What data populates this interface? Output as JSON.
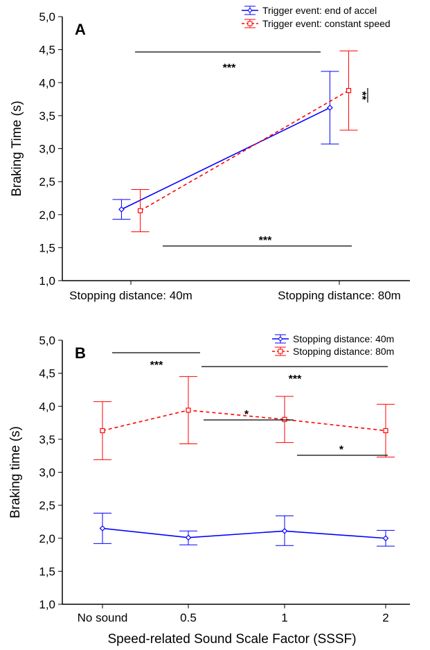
{
  "chart_data": [
    {
      "type": "line",
      "panel_label": "A",
      "ylabel": "Braking Time (s)",
      "xlabel": "",
      "categories": [
        "Stopping distance: 40m",
        "Stopping distance: 80m"
      ],
      "ylim": [
        1.0,
        5.0
      ],
      "yticks": [
        "1,0",
        "1,5",
        "2,0",
        "2,5",
        "3,0",
        "3,5",
        "4,0",
        "4,5",
        "5,0"
      ],
      "series": [
        {
          "name": "Trigger event: end of accel",
          "color": "#0000ff",
          "style": "solid",
          "marker": "diamond",
          "values": [
            2.08,
            3.62
          ],
          "err_low": [
            1.93,
            3.07
          ],
          "err_high": [
            2.23,
            4.17
          ],
          "offset": -0.1
        },
        {
          "name": "Trigger event: constant speed",
          "color": "#ff0000",
          "style": "dashed",
          "marker": "square",
          "values": [
            2.06,
            3.88
          ],
          "err_low": [
            1.74,
            3.28
          ],
          "err_high": [
            2.38,
            4.48
          ],
          "offset": 0.1
        }
      ],
      "significance": [
        {
          "label": "***",
          "from": 0,
          "to": 1,
          "y": 4.75
        },
        {
          "label": "***",
          "from": 0,
          "to": 1,
          "y": 1.5
        },
        {
          "label": "**",
          "vertical": true
        }
      ]
    },
    {
      "type": "line",
      "panel_label": "B",
      "ylabel": "Braking time (s)",
      "xlabel": "Speed-related Sound Scale Factor (SSSF)",
      "categories": [
        "No sound",
        "0.5",
        "1",
        "2"
      ],
      "ylim": [
        1.0,
        5.0
      ],
      "yticks": [
        "1,0",
        "1,5",
        "2,0",
        "2,5",
        "3,0",
        "3,5",
        "4,0",
        "4,5",
        "5,0"
      ],
      "series": [
        {
          "name": "Stopping distance: 40m",
          "color": "#0000ff",
          "style": "solid",
          "marker": "diamond",
          "values": [
            2.15,
            2.01,
            2.11,
            2.0
          ],
          "err_low": [
            1.92,
            1.9,
            1.89,
            1.88
          ],
          "err_high": [
            2.38,
            2.11,
            2.34,
            2.12
          ]
        },
        {
          "name": "Stopping distance: 80m",
          "color": "#ff0000",
          "style": "dashed",
          "marker": "square",
          "values": [
            3.63,
            3.94,
            3.8,
            3.63
          ],
          "err_low": [
            3.19,
            3.43,
            3.45,
            3.23
          ],
          "err_high": [
            4.07,
            4.45,
            4.15,
            4.03
          ]
        }
      ],
      "significance": [
        {
          "label": "***",
          "from": 0,
          "to": 1
        },
        {
          "label": "***",
          "from": 1,
          "to": 3
        },
        {
          "label": "*",
          "from": 1,
          "to": 2
        },
        {
          "label": "*",
          "from": 2,
          "to": 3
        }
      ]
    }
  ]
}
